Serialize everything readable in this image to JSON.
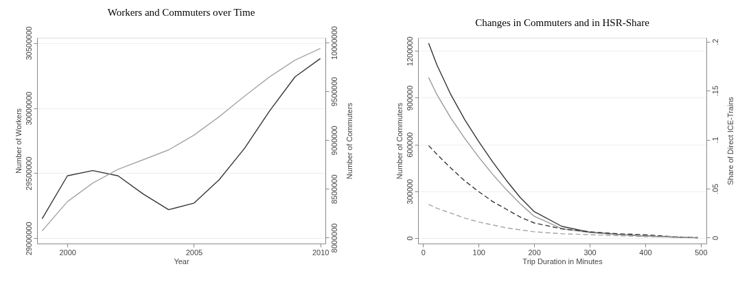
{
  "chart_data": [
    {
      "type": "line",
      "title": "Workers and Commuters over Time",
      "xlabel": "Year",
      "ylabel": "Number of Workers",
      "y2label": "Number of Commuters",
      "x": [
        1999,
        2000,
        2001,
        2002,
        2003,
        2004,
        2005,
        2006,
        2007,
        2008,
        2009,
        2010
      ],
      "xlim": [
        1998.8,
        2010.2
      ],
      "xticks": [
        2000,
        2005,
        2010
      ],
      "ylim": [
        28960000,
        30540000
      ],
      "yticks": [
        29000000,
        29500000,
        30000000,
        30500000
      ],
      "y2lim": [
        7940000,
        10050000
      ],
      "y2ticks": [
        8000000,
        8500000,
        9000000,
        9500000,
        10000000
      ],
      "grid": "y",
      "series": [
        {
          "color": "#333333",
          "line_style": "solid",
          "values": [
            29150000,
            29480000,
            29520000,
            29480000,
            29340000,
            29220000,
            29270000,
            29450000,
            29690000,
            29980000,
            30240000,
            30380000
          ]
        },
        {
          "color": "#a6a6a6",
          "line_style": "solid",
          "axis": "y2",
          "values": [
            8070000,
            8370000,
            8560000,
            8700000,
            8800000,
            8900000,
            9050000,
            9240000,
            9450000,
            9650000,
            9820000,
            9940000
          ]
        }
      ]
    },
    {
      "type": "line",
      "title": "Changes in Commuters and in HSR-Share",
      "xlabel": "Trip Duration in Minutes",
      "ylabel": "Number of Commuters",
      "y2label": "Share of Direct ICE-Trains",
      "x": [
        10,
        25,
        50,
        75,
        100,
        125,
        150,
        175,
        200,
        250,
        300,
        350,
        400,
        450,
        495
      ],
      "xlim": [
        -9,
        510
      ],
      "xticks": [
        0,
        100,
        200,
        300,
        400,
        500
      ],
      "ylim": [
        -35000,
        1285000
      ],
      "yticks": [
        0,
        300000,
        600000,
        900000,
        1200000
      ],
      "y2lim": [
        -0.006,
        0.204
      ],
      "y2ticks": [
        0,
        {
          "value": 0.05,
          "label": ".05"
        },
        {
          "value": 0.1,
          "label": ".1"
        },
        {
          "value": 0.15,
          "label": ".15"
        },
        {
          "value": 0.2,
          "label": ".2"
        }
      ],
      "grid": "y",
      "series": [
        {
          "color": "#333333",
          "line_style": "solid",
          "values": [
            1250000,
            1110000,
            920000,
            760000,
            620000,
            490000,
            370000,
            260000,
            170000,
            75000,
            38000,
            24000,
            14000,
            7000,
            2000
          ]
        },
        {
          "color": "#999999",
          "line_style": "solid",
          "values": [
            1030000,
            920000,
            770000,
            640000,
            520000,
            410000,
            310000,
            220000,
            140000,
            60000,
            35000,
            22000,
            13000,
            6000,
            2000
          ]
        },
        {
          "color": "#333333",
          "line_style": "dashed",
          "axis": "y2",
          "values": [
            0.094,
            0.085,
            0.071,
            0.058,
            0.047,
            0.037,
            0.029,
            0.021,
            0.015,
            0.009,
            0.006,
            0.004,
            0.003,
            0.001,
            0
          ]
        },
        {
          "color": "#a6a6a6",
          "line_style": "dashed",
          "axis": "y2",
          "values": [
            0.034,
            0.03,
            0.025,
            0.02,
            0.016,
            0.013,
            0.01,
            0.008,
            0.006,
            0.004,
            0.003,
            0.002,
            0.001,
            0.001,
            0
          ]
        }
      ]
    }
  ]
}
